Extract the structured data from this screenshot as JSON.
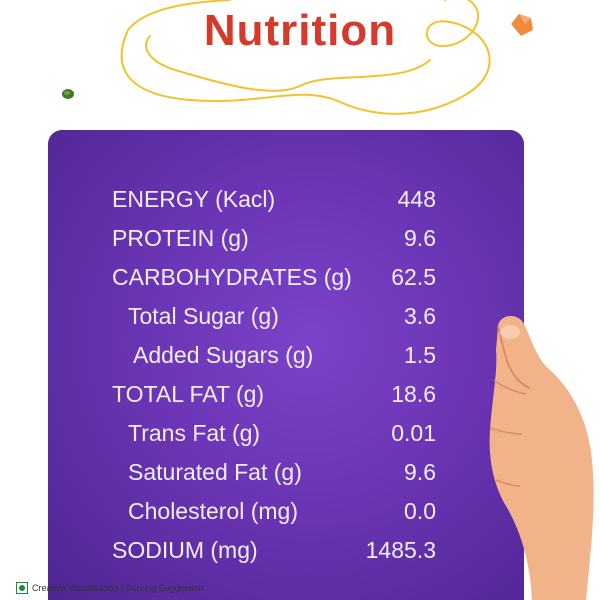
{
  "title": "Nutrition",
  "nutrients": [
    {
      "label": "ENERGY (Kacl)",
      "value": "448",
      "level": 0
    },
    {
      "label": "PROTEIN (g)",
      "value": "9.6",
      "level": 0
    },
    {
      "label": "CARBOHYDRATES (g)",
      "value": "62.5",
      "level": 0
    },
    {
      "label": "Total Sugar (g)",
      "value": "3.6",
      "level": 1
    },
    {
      "label": "Added  Sugars (g)",
      "value": "1.5",
      "level": 2
    },
    {
      "label": "TOTAL FAT (g)",
      "value": "18.6",
      "level": 0
    },
    {
      "label": "Trans Fat (g)",
      "value": "0.01",
      "level": 1
    },
    {
      "label": "Saturated Fat (g)",
      "value": "9.6",
      "level": 1
    },
    {
      "label": "Cholesterol (mg)",
      "value": "0.0",
      "level": 1
    },
    {
      "label": "SODIUM (mg)",
      "value": "1485.3",
      "level": 0
    }
  ],
  "footer": {
    "note": "Creative Visualisation | Serving Suggestion",
    "icon": "veg-symbol-icon"
  },
  "colors": {
    "title": "#d63a2c",
    "panel": "#6a35b4",
    "text": "#f3ecf9",
    "squiggle": "#f2c230",
    "hand": "#f3b38a"
  }
}
